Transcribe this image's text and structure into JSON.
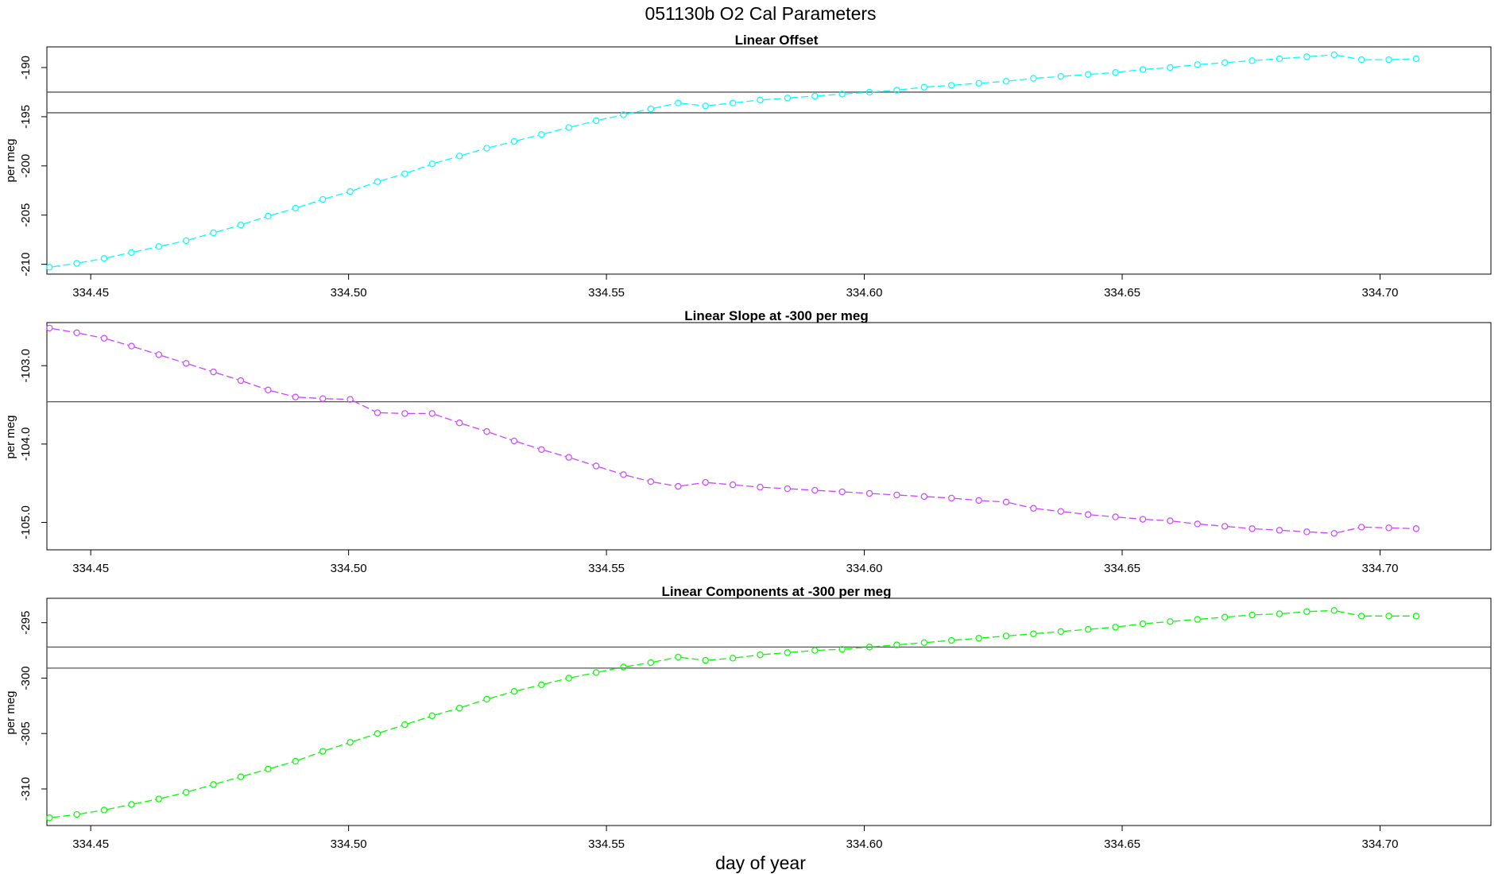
{
  "figure": {
    "title": "051130b   O2 Cal Parameters",
    "xlabel": "day of year"
  },
  "chart_data": [
    {
      "type": "line",
      "title": "Linear Offset",
      "ylabel": "per meg",
      "xlabel": "day of year",
      "color": "#00ffff",
      "xlim": [
        334.4415,
        334.7215
      ],
      "ylim": [
        -211.0,
        -187.9
      ],
      "xticks": [
        334.45,
        334.5,
        334.55,
        334.6,
        334.65,
        334.7
      ],
      "xtick_labels": [
        "334.45",
        "334.50",
        "334.55",
        "334.60",
        "334.65",
        "334.70"
      ],
      "yticks": [
        -190,
        -195,
        -200,
        -205,
        -210
      ],
      "ytick_labels": [
        "-190",
        "-195",
        "-200",
        "-205",
        "-210"
      ],
      "hlines": [
        -192.5,
        -194.6
      ],
      "grid": false,
      "series": [
        {
          "x": [
            334.442,
            334.4473,
            334.4526,
            334.4579,
            334.4632,
            334.4685,
            334.4738,
            334.4791,
            334.4844,
            334.4897,
            334.495,
            334.5003,
            334.5056,
            334.5109,
            334.5162,
            334.5215,
            334.5268,
            334.5321,
            334.5374,
            334.5427,
            334.548,
            334.5533,
            334.5586,
            334.5639,
            334.5692,
            334.5745,
            334.5798,
            334.5851,
            334.5904,
            334.5957,
            334.601,
            334.6063,
            334.6116,
            334.6169,
            334.6222,
            334.6275,
            334.6328,
            334.6381,
            334.6434,
            334.6487,
            334.654,
            334.6593,
            334.6646,
            334.6699,
            334.6752,
            334.6805,
            334.6858,
            334.6911,
            334.6964,
            334.7017,
            334.707
          ],
          "y": [
            -210.3,
            -209.9,
            -209.4,
            -208.8,
            -208.2,
            -207.6,
            -206.8,
            -206.0,
            -205.1,
            -204.3,
            -203.4,
            -202.6,
            -201.6,
            -200.8,
            -199.8,
            -199.0,
            -198.2,
            -197.5,
            -196.8,
            -196.1,
            -195.4,
            -194.8,
            -194.2,
            -193.6,
            -193.9,
            -193.6,
            -193.3,
            -193.1,
            -192.9,
            -192.7,
            -192.5,
            -192.3,
            -192.0,
            -191.8,
            -191.6,
            -191.4,
            -191.1,
            -190.9,
            -190.7,
            -190.5,
            -190.2,
            -190.0,
            -189.7,
            -189.5,
            -189.3,
            -189.1,
            -188.9,
            -188.7,
            -189.2,
            -189.2,
            -189.1
          ]
        }
      ]
    },
    {
      "type": "line",
      "title": "Linear Slope at -300 per meg",
      "ylabel": "per meg",
      "xlabel": "day of year",
      "color": "#cc44ff",
      "xlim": [
        334.4415,
        334.7215
      ],
      "ylim": [
        -105.35,
        -102.45
      ],
      "xticks": [
        334.45,
        334.5,
        334.55,
        334.6,
        334.65,
        334.7
      ],
      "xtick_labels": [
        "334.45",
        "334.50",
        "334.55",
        "334.60",
        "334.65",
        "334.70"
      ],
      "yticks": [
        -103.0,
        -104.0,
        -105.0
      ],
      "ytick_labels": [
        "-103.0",
        "-104.0",
        "-105.0"
      ],
      "hlines": [
        -103.46
      ],
      "grid": false,
      "series": [
        {
          "x": [
            334.442,
            334.4473,
            334.4526,
            334.4579,
            334.4632,
            334.4685,
            334.4738,
            334.4791,
            334.4844,
            334.4897,
            334.495,
            334.5003,
            334.5056,
            334.5109,
            334.5162,
            334.5215,
            334.5268,
            334.5321,
            334.5374,
            334.5427,
            334.548,
            334.5533,
            334.5586,
            334.5639,
            334.5692,
            334.5745,
            334.5798,
            334.5851,
            334.5904,
            334.5957,
            334.601,
            334.6063,
            334.6116,
            334.6169,
            334.6222,
            334.6275,
            334.6328,
            334.6381,
            334.6434,
            334.6487,
            334.654,
            334.6593,
            334.6646,
            334.6699,
            334.6752,
            334.6805,
            334.6858,
            334.6911,
            334.6964,
            334.7017,
            334.707
          ],
          "y": [
            -102.52,
            -102.58,
            -102.65,
            -102.75,
            -102.86,
            -102.97,
            -103.08,
            -103.19,
            -103.31,
            -103.4,
            -103.42,
            -103.43,
            -103.6,
            -103.61,
            -103.61,
            -103.73,
            -103.84,
            -103.96,
            -104.07,
            -104.17,
            -104.28,
            -104.39,
            -104.48,
            -104.54,
            -104.49,
            -104.52,
            -104.55,
            -104.57,
            -104.59,
            -104.61,
            -104.63,
            -104.65,
            -104.67,
            -104.69,
            -104.72,
            -104.74,
            -104.82,
            -104.86,
            -104.9,
            -104.93,
            -104.96,
            -104.98,
            -105.02,
            -105.05,
            -105.08,
            -105.1,
            -105.12,
            -105.14,
            -105.06,
            -105.07,
            -105.08
          ]
        }
      ]
    },
    {
      "type": "line",
      "title": "Linear Components at -300 per meg",
      "ylabel": "per meg",
      "xlabel": "day of year",
      "color": "#00ff00",
      "xlim": [
        334.4415,
        334.7215
      ],
      "ylim": [
        -313.3,
        -292.8
      ],
      "xticks": [
        334.45,
        334.5,
        334.55,
        334.6,
        334.65,
        334.7
      ],
      "xtick_labels": [
        "334.45",
        "334.50",
        "334.55",
        "334.60",
        "334.65",
        "334.70"
      ],
      "yticks": [
        -295,
        -300,
        -305,
        -310
      ],
      "ytick_labels": [
        "-295",
        "-300",
        "-305",
        "-310"
      ],
      "hlines": [
        -297.2,
        -299.1
      ],
      "grid": false,
      "series": [
        {
          "x": [
            334.442,
            334.4473,
            334.4526,
            334.4579,
            334.4632,
            334.4685,
            334.4738,
            334.4791,
            334.4844,
            334.4897,
            334.495,
            334.5003,
            334.5056,
            334.5109,
            334.5162,
            334.5215,
            334.5268,
            334.5321,
            334.5374,
            334.5427,
            334.548,
            334.5533,
            334.5586,
            334.5639,
            334.5692,
            334.5745,
            334.5798,
            334.5851,
            334.5904,
            334.5957,
            334.601,
            334.6063,
            334.6116,
            334.6169,
            334.6222,
            334.6275,
            334.6328,
            334.6381,
            334.6434,
            334.6487,
            334.654,
            334.6593,
            334.6646,
            334.6699,
            334.6752,
            334.6805,
            334.6858,
            334.6911,
            334.6964,
            334.7017,
            334.707
          ],
          "y": [
            -312.6,
            -312.3,
            -311.9,
            -311.4,
            -310.9,
            -310.3,
            -309.6,
            -308.9,
            -308.2,
            -307.5,
            -306.6,
            -305.8,
            -305.0,
            -304.2,
            -303.4,
            -302.7,
            -301.9,
            -301.2,
            -300.6,
            -300.0,
            -299.5,
            -299.0,
            -298.6,
            -298.1,
            -298.4,
            -298.2,
            -297.9,
            -297.7,
            -297.5,
            -297.4,
            -297.2,
            -297.0,
            -296.8,
            -296.6,
            -296.4,
            -296.2,
            -296.0,
            -295.8,
            -295.6,
            -295.4,
            -295.1,
            -294.9,
            -294.7,
            -294.5,
            -294.3,
            -294.2,
            -294.0,
            -293.9,
            -294.4,
            -294.4,
            -294.4
          ]
        }
      ]
    }
  ]
}
